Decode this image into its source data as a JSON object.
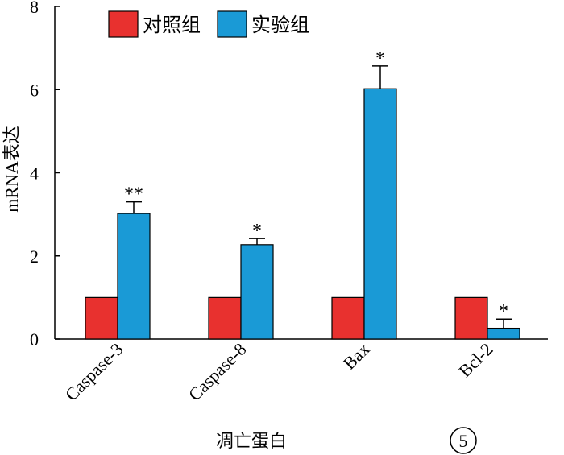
{
  "chart_data": {
    "type": "bar",
    "categories": [
      "Caspase-3",
      "Caspase-8",
      "Bax",
      "Bcl-2"
    ],
    "series": [
      {
        "name": "对照组",
        "color": "#e8312f",
        "values": [
          1.0,
          1.0,
          1.0,
          1.0
        ],
        "errors": [
          0,
          0,
          0,
          0
        ]
      },
      {
        "name": "实验组",
        "color": "#1a9ad6",
        "values": [
          3.02,
          2.27,
          6.02,
          0.26
        ],
        "errors": [
          0.28,
          0.15,
          0.55,
          0.22
        ]
      }
    ],
    "significance": [
      "**",
      "*",
      "*",
      "*"
    ],
    "xlabel": "凋亡蛋白",
    "ylabel": "mRNA表达",
    "ylim": [
      0,
      8
    ],
    "yticks": [
      0,
      2,
      4,
      6,
      8
    ],
    "grid": false,
    "legend_position": "top-left",
    "panel_label": "5"
  }
}
